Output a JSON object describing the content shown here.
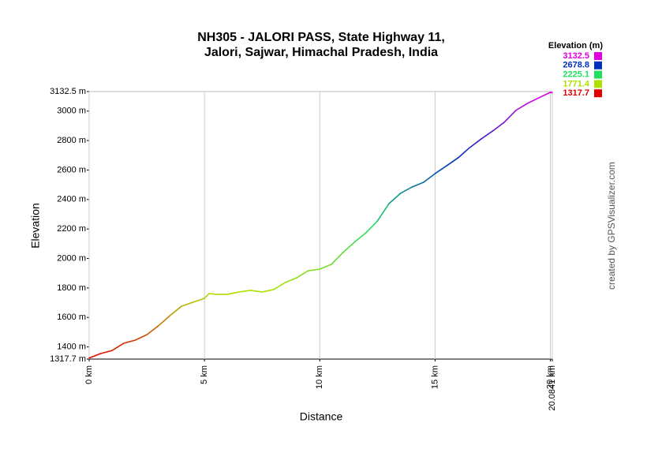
{
  "chart_data": {
    "type": "line",
    "title": "NH305 - JALORI PASS, State Highway 11,",
    "subtitle": "Jalori, Sajwar, Himachal Pradesh, India",
    "x_label": "Distance",
    "y_label": "Elevation",
    "legend_title": "Elevation (m)",
    "credit": "created by GPSVisualizer.com",
    "grid": "x",
    "x": [
      0,
      0.5,
      1,
      1.5,
      2,
      2.5,
      3,
      3.5,
      4,
      4.5,
      5,
      5.2,
      5.5,
      6,
      6.5,
      7,
      7.5,
      8,
      8.5,
      9,
      9.5,
      10,
      10.5,
      11,
      11.5,
      12,
      12.5,
      13,
      13.5,
      14,
      14.5,
      15,
      15.5,
      16,
      16.5,
      17,
      17.5,
      18,
      18.5,
      19,
      19.5,
      20,
      20.0841
    ],
    "y": [
      1325,
      1355,
      1376,
      1425,
      1446,
      1483,
      1543,
      1612,
      1676,
      1703,
      1730,
      1762,
      1757,
      1757,
      1773,
      1784,
      1773,
      1789,
      1837,
      1869,
      1917,
      1928,
      1960,
      2040,
      2110,
      2174,
      2254,
      2372,
      2442,
      2485,
      2517,
      2576,
      2629,
      2683,
      2752,
      2811,
      2865,
      2924,
      3004,
      3052,
      3090,
      3127,
      3125
    ],
    "color_scale": [
      {
        "value": 3132.5,
        "color": "#e000e0"
      },
      {
        "value": 2678.8,
        "color": "#0030c0"
      },
      {
        "value": 2225.1,
        "color": "#20e060"
      },
      {
        "value": 1771.4,
        "color": "#b0e000"
      },
      {
        "value": 1317.7,
        "color": "#e00000"
      }
    ],
    "xlim": [
      0,
      20.0841
    ],
    "ylim": [
      1317.7,
      3132.5
    ],
    "xticks": [
      {
        "value": 0,
        "label": "0 km"
      },
      {
        "value": 5,
        "label": "5 km"
      },
      {
        "value": 10,
        "label": "10 km"
      },
      {
        "value": 15,
        "label": "15 km"
      },
      {
        "value": 20,
        "label": "20 km"
      },
      {
        "value": 20.0841,
        "label": "20.0841 km"
      }
    ],
    "yticks": [
      {
        "value": 1317.7,
        "label": "1317.7 m"
      },
      {
        "value": 1400,
        "label": "1400 m"
      },
      {
        "value": 1600,
        "label": "1600 m"
      },
      {
        "value": 1800,
        "label": "1800 m"
      },
      {
        "value": 2000,
        "label": "2000 m"
      },
      {
        "value": 2200,
        "label": "2200 m"
      },
      {
        "value": 2400,
        "label": "2400 m"
      },
      {
        "value": 2600,
        "label": "2600 m"
      },
      {
        "value": 2800,
        "label": "2800 m"
      },
      {
        "value": 3000,
        "label": "3000 m"
      },
      {
        "value": 3132.5,
        "label": "3132.5 m"
      }
    ]
  }
}
